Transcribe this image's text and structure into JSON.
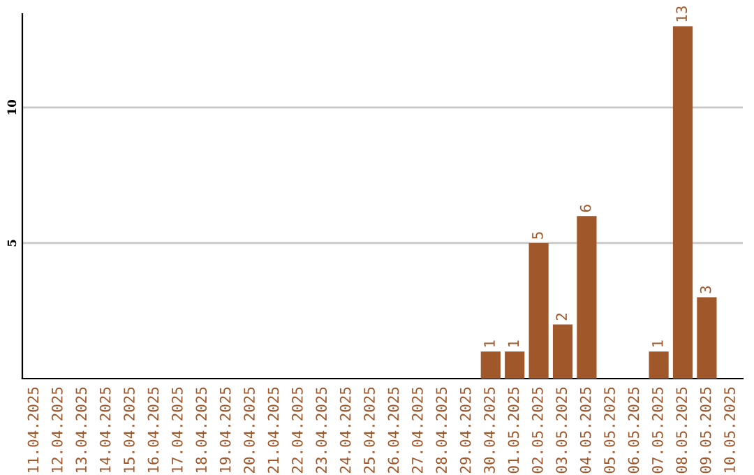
{
  "chart_data": {
    "type": "bar",
    "categories": [
      "11.04.2025",
      "12.04.2025",
      "13.04.2025",
      "14.04.2025",
      "15.04.2025",
      "16.04.2025",
      "17.04.2025",
      "18.04.2025",
      "19.04.2025",
      "20.04.2025",
      "21.04.2025",
      "22.04.2025",
      "23.04.2025",
      "24.04.2025",
      "25.04.2025",
      "26.04.2025",
      "27.04.2025",
      "28.04.2025",
      "29.04.2025",
      "30.04.2025",
      "01.05.2025",
      "02.05.2025",
      "03.05.2025",
      "04.05.2025",
      "05.05.2025",
      "06.05.2025",
      "07.05.2025",
      "08.05.2025",
      "09.05.2025",
      "10.05.2025"
    ],
    "values": [
      0,
      0,
      0,
      0,
      0,
      0,
      0,
      0,
      0,
      0,
      0,
      0,
      0,
      0,
      0,
      0,
      0,
      0,
      0,
      1,
      1,
      5,
      2,
      6,
      0,
      0,
      1,
      13,
      3,
      0
    ],
    "value_labels": [
      null,
      null,
      null,
      null,
      null,
      null,
      null,
      null,
      null,
      null,
      null,
      null,
      null,
      null,
      null,
      null,
      null,
      null,
      null,
      "1",
      "1",
      "5",
      "2",
      "6",
      null,
      null,
      "1",
      "13",
      "3",
      null
    ],
    "color": "#a0572a",
    "ylim": [
      0,
      13.45
    ],
    "yticks": [
      5,
      10
    ],
    "grid": "y"
  }
}
